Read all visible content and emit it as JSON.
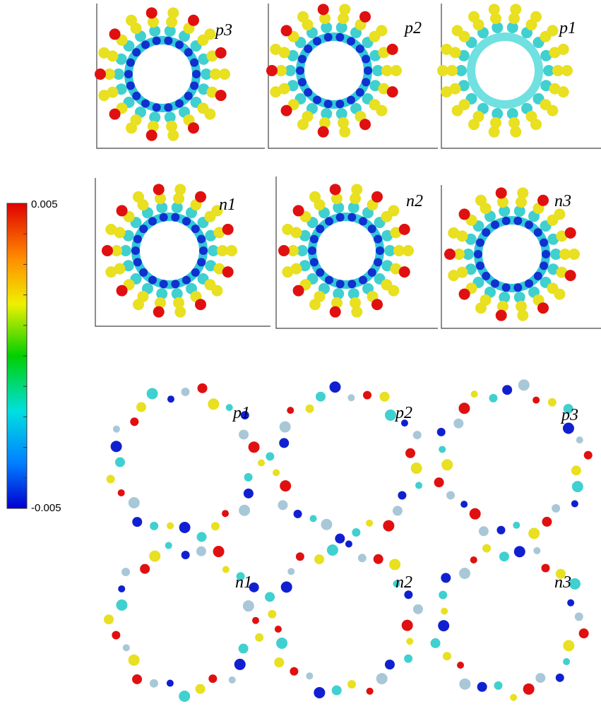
{
  "colorbar": {
    "max": "0.005",
    "min": "-0.005"
  },
  "panels": [
    {
      "label": "p3"
    },
    {
      "label": "p2"
    },
    {
      "label": "p1"
    },
    {
      "label": "n1"
    },
    {
      "label": "n2"
    },
    {
      "label": "n3"
    },
    {
      "label": "p1"
    },
    {
      "label": "p2"
    },
    {
      "label": "p3"
    },
    {
      "label": "n1"
    },
    {
      "label": "n2"
    },
    {
      "label": "n3"
    }
  ]
}
